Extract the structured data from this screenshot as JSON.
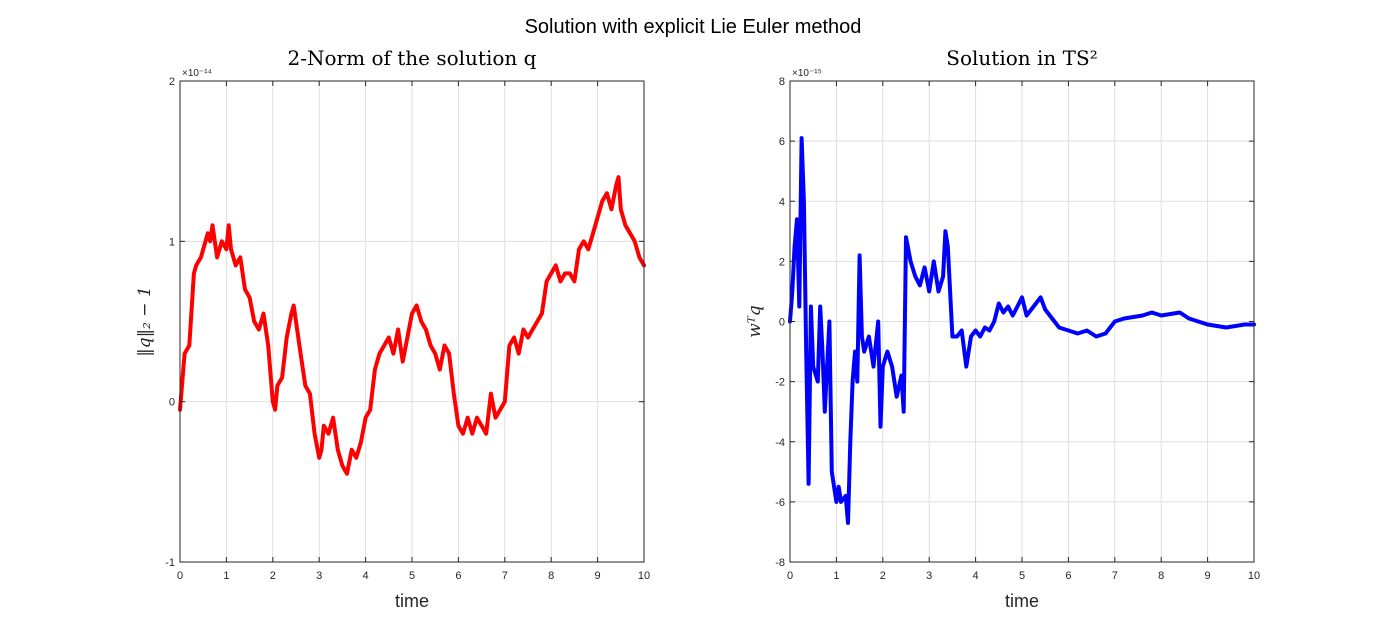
{
  "figure_title": "Solution with explicit Lie Euler method",
  "chart_data": [
    {
      "type": "line",
      "title": "2-Norm of the solution q",
      "xlabel": "time",
      "ylabel": "‖q‖₂ − 1",
      "y_exponent_label": "×10⁻¹⁴",
      "xlim": [
        0,
        10
      ],
      "ylim": [
        -1,
        2
      ],
      "xticks": [
        0,
        1,
        2,
        3,
        4,
        5,
        6,
        7,
        8,
        9,
        10
      ],
      "yticks": [
        -1,
        0,
        1,
        2
      ],
      "grid": true,
      "color": "#ff0000",
      "x": [
        0.0,
        0.1,
        0.2,
        0.3,
        0.35,
        0.45,
        0.5,
        0.6,
        0.65,
        0.7,
        0.8,
        0.9,
        1.0,
        1.05,
        1.1,
        1.2,
        1.3,
        1.4,
        1.5,
        1.6,
        1.7,
        1.8,
        1.9,
        2.0,
        2.05,
        2.1,
        2.2,
        2.3,
        2.4,
        2.45,
        2.5,
        2.6,
        2.7,
        2.8,
        2.9,
        3.0,
        3.05,
        3.1,
        3.2,
        3.3,
        3.4,
        3.5,
        3.6,
        3.7,
        3.8,
        3.9,
        4.0,
        4.1,
        4.2,
        4.3,
        4.4,
        4.5,
        4.6,
        4.7,
        4.8,
        4.9,
        5.0,
        5.1,
        5.2,
        5.3,
        5.4,
        5.5,
        5.6,
        5.7,
        5.8,
        5.9,
        6.0,
        6.1,
        6.2,
        6.3,
        6.4,
        6.5,
        6.6,
        6.7,
        6.8,
        6.9,
        7.0,
        7.1,
        7.2,
        7.3,
        7.4,
        7.5,
        7.6,
        7.7,
        7.8,
        7.9,
        8.0,
        8.1,
        8.2,
        8.3,
        8.4,
        8.5,
        8.6,
        8.7,
        8.8,
        8.9,
        9.0,
        9.1,
        9.2,
        9.3,
        9.4,
        9.45,
        9.5,
        9.6,
        9.7,
        9.8,
        9.9,
        10.0
      ],
      "y": [
        -0.05,
        0.3,
        0.35,
        0.8,
        0.85,
        0.9,
        0.95,
        1.05,
        1.0,
        1.1,
        0.9,
        1.0,
        0.95,
        1.1,
        0.95,
        0.85,
        0.9,
        0.7,
        0.65,
        0.5,
        0.45,
        0.55,
        0.35,
        0.0,
        -0.05,
        0.1,
        0.15,
        0.4,
        0.55,
        0.6,
        0.5,
        0.3,
        0.1,
        0.05,
        -0.2,
        -0.35,
        -0.3,
        -0.15,
        -0.2,
        -0.1,
        -0.3,
        -0.4,
        -0.45,
        -0.3,
        -0.35,
        -0.25,
        -0.1,
        -0.05,
        0.2,
        0.3,
        0.35,
        0.4,
        0.3,
        0.45,
        0.25,
        0.4,
        0.55,
        0.6,
        0.5,
        0.45,
        0.35,
        0.3,
        0.2,
        0.35,
        0.3,
        0.05,
        -0.15,
        -0.2,
        -0.1,
        -0.2,
        -0.1,
        -0.15,
        -0.2,
        0.05,
        -0.1,
        -0.05,
        0.0,
        0.35,
        0.4,
        0.3,
        0.45,
        0.4,
        0.45,
        0.5,
        0.55,
        0.75,
        0.8,
        0.85,
        0.75,
        0.8,
        0.8,
        0.75,
        0.95,
        1.0,
        0.95,
        1.05,
        1.15,
        1.25,
        1.3,
        1.2,
        1.35,
        1.4,
        1.2,
        1.1,
        1.05,
        1.0,
        0.9,
        0.85
      ]
    },
    {
      "type": "line",
      "title": "Solution in TS²",
      "xlabel": "time",
      "ylabel": "wᵀq",
      "y_exponent_label": "×10⁻¹⁵",
      "xlim": [
        0,
        10
      ],
      "ylim": [
        -8,
        8
      ],
      "xticks": [
        0,
        1,
        2,
        3,
        4,
        5,
        6,
        7,
        8,
        9,
        10
      ],
      "yticks": [
        -8,
        -6,
        -4,
        -2,
        0,
        2,
        4,
        6,
        8
      ],
      "grid": true,
      "color": "#0000ff",
      "x": [
        0.0,
        0.05,
        0.1,
        0.15,
        0.2,
        0.25,
        0.3,
        0.35,
        0.4,
        0.45,
        0.5,
        0.6,
        0.65,
        0.7,
        0.75,
        0.8,
        0.85,
        0.9,
        1.0,
        1.05,
        1.1,
        1.2,
        1.25,
        1.3,
        1.35,
        1.4,
        1.45,
        1.5,
        1.55,
        1.6,
        1.7,
        1.8,
        1.9,
        1.95,
        2.0,
        2.1,
        2.2,
        2.3,
        2.4,
        2.45,
        2.5,
        2.6,
        2.7,
        2.8,
        2.9,
        3.0,
        3.1,
        3.2,
        3.3,
        3.35,
        3.4,
        3.5,
        3.6,
        3.7,
        3.8,
        3.9,
        4.0,
        4.1,
        4.2,
        4.3,
        4.4,
        4.5,
        4.6,
        4.7,
        4.8,
        4.9,
        5.0,
        5.1,
        5.2,
        5.3,
        5.4,
        5.5,
        5.6,
        5.8,
        6.0,
        6.2,
        6.4,
        6.6,
        6.8,
        7.0,
        7.2,
        7.4,
        7.6,
        7.8,
        8.0,
        8.2,
        8.4,
        8.6,
        8.8,
        9.0,
        9.2,
        9.4,
        9.6,
        9.8,
        10.0
      ],
      "y": [
        0.0,
        1.0,
        2.5,
        3.4,
        0.5,
        6.1,
        4.0,
        -1.0,
        -5.4,
        0.5,
        -1.5,
        -2.0,
        0.5,
        -1.0,
        -3.0,
        -1.5,
        0.0,
        -5.0,
        -6.0,
        -5.5,
        -6.0,
        -5.8,
        -6.7,
        -4.0,
        -2.0,
        -1.0,
        -2.0,
        2.2,
        -0.5,
        -1.0,
        -0.5,
        -1.5,
        0.0,
        -3.5,
        -1.5,
        -1.0,
        -1.5,
        -2.5,
        -1.8,
        -3.0,
        2.8,
        2.0,
        1.5,
        1.2,
        1.8,
        1.0,
        2.0,
        1.0,
        1.5,
        3.0,
        2.5,
        -0.5,
        -0.5,
        -0.3,
        -1.5,
        -0.5,
        -0.3,
        -0.5,
        -0.2,
        -0.3,
        0.0,
        0.6,
        0.3,
        0.5,
        0.2,
        0.5,
        0.8,
        0.2,
        0.4,
        0.6,
        0.8,
        0.4,
        0.2,
        -0.2,
        -0.3,
        -0.4,
        -0.3,
        -0.5,
        -0.4,
        0.0,
        0.1,
        0.15,
        0.2,
        0.3,
        0.2,
        0.25,
        0.3,
        0.1,
        0.0,
        -0.1,
        -0.15,
        -0.2,
        -0.15,
        -0.1,
        -0.1
      ]
    }
  ]
}
